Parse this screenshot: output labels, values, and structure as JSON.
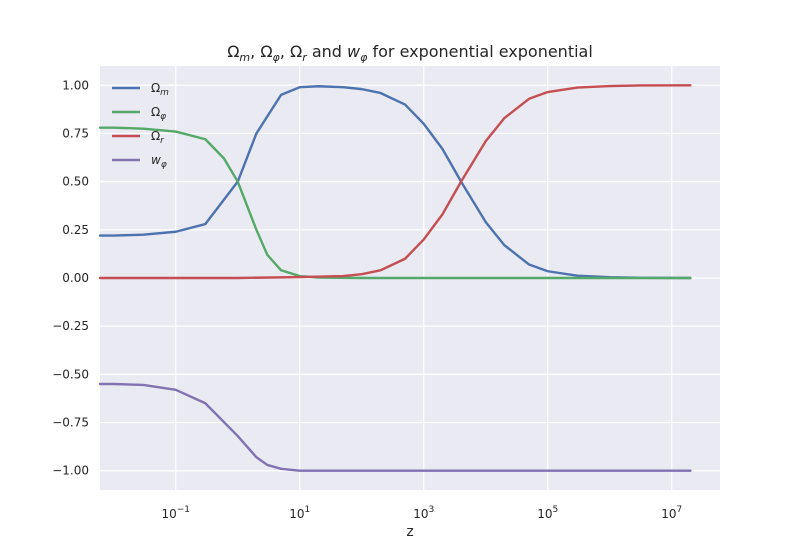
{
  "chart_data": {
    "type": "line",
    "title": "Ω_m, Ω_φ, Ω_r and w_φ for exponential exponential",
    "title_parts": {
      "sym1": "Ω",
      "sub1": "m",
      "sep1": ", ",
      "sym2": "Ω",
      "sub2": "φ",
      "sep2": ", ",
      "sym3": "Ω",
      "sub3": "r",
      "mid": " and ",
      "sym4": "w",
      "sub4": "φ",
      "tail": " for exponential exponential"
    },
    "xlabel": "z",
    "ylabel": "",
    "x_scale": "log",
    "xlim": [
      0.006,
      60000000
    ],
    "ylim": [
      -1.1,
      1.1
    ],
    "x_ticks": [
      {
        "value": 0.1,
        "base": "10",
        "exp": "−1"
      },
      {
        "value": 10,
        "base": "10",
        "exp": "1"
      },
      {
        "value": 1000,
        "base": "10",
        "exp": "3"
      },
      {
        "value": 100000,
        "base": "10",
        "exp": "5"
      },
      {
        "value": 10000000,
        "base": "10",
        "exp": "7"
      }
    ],
    "y_ticks": [
      1.0,
      0.75,
      0.5,
      0.25,
      0.0,
      -0.25,
      -0.5,
      -0.75,
      -1.0
    ],
    "y_tick_labels": [
      "1.00",
      "0.75",
      "0.50",
      "0.25",
      "0.00",
      "−0.25",
      "−0.50",
      "−0.75",
      "−1.00"
    ],
    "grid": true,
    "legend_position": "top-left",
    "series": [
      {
        "name": "Ω_m",
        "label_sym": "Ω",
        "label_sub": "m",
        "color": "#4c72b0",
        "x": [
          0.006,
          0.01,
          0.03,
          0.1,
          0.3,
          1,
          2,
          5,
          10,
          20,
          50,
          100,
          200,
          500,
          1000,
          2000,
          4000,
          10000,
          20000,
          50000,
          100000,
          300000,
          1000000,
          3000000,
          20000000
        ],
        "y": [
          0.22,
          0.22,
          0.225,
          0.24,
          0.28,
          0.5,
          0.75,
          0.95,
          0.99,
          0.995,
          0.99,
          0.98,
          0.96,
          0.9,
          0.8,
          0.67,
          0.5,
          0.29,
          0.17,
          0.07,
          0.035,
          0.012,
          0.004,
          0.001,
          0.0
        ]
      },
      {
        "name": "Ω_φ",
        "label_sym": "Ω",
        "label_sub": "φ",
        "color": "#55a868",
        "x": [
          0.006,
          0.01,
          0.03,
          0.1,
          0.3,
          0.6,
          1,
          2,
          3,
          5,
          10,
          20,
          100,
          1000,
          100000,
          20000000
        ],
        "y": [
          0.78,
          0.78,
          0.775,
          0.76,
          0.72,
          0.62,
          0.5,
          0.25,
          0.12,
          0.04,
          0.01,
          0.002,
          0.0,
          0.0,
          0.0,
          0.0
        ]
      },
      {
        "name": "Ω_r",
        "label_sym": "Ω",
        "label_sub": "r",
        "color": "#c44e52",
        "x": [
          0.006,
          1,
          10,
          50,
          100,
          200,
          500,
          1000,
          2000,
          4000,
          10000,
          20000,
          50000,
          100000,
          300000,
          1000000,
          3000000,
          20000000
        ],
        "y": [
          0.0,
          0.0,
          0.005,
          0.01,
          0.02,
          0.04,
          0.1,
          0.2,
          0.33,
          0.5,
          0.71,
          0.83,
          0.93,
          0.965,
          0.988,
          0.996,
          0.999,
          1.0
        ]
      },
      {
        "name": "w_φ",
        "label_sym": "w",
        "label_sub": "φ",
        "color": "#8172b2",
        "x": [
          0.006,
          0.01,
          0.03,
          0.1,
          0.3,
          1,
          2,
          3,
          5,
          10,
          20,
          100,
          1000,
          100000,
          20000000
        ],
        "y": [
          -0.55,
          -0.55,
          -0.555,
          -0.58,
          -0.65,
          -0.82,
          -0.93,
          -0.97,
          -0.99,
          -1.0,
          -1.0,
          -1.0,
          -1.0,
          -1.0,
          -1.0
        ]
      }
    ]
  }
}
